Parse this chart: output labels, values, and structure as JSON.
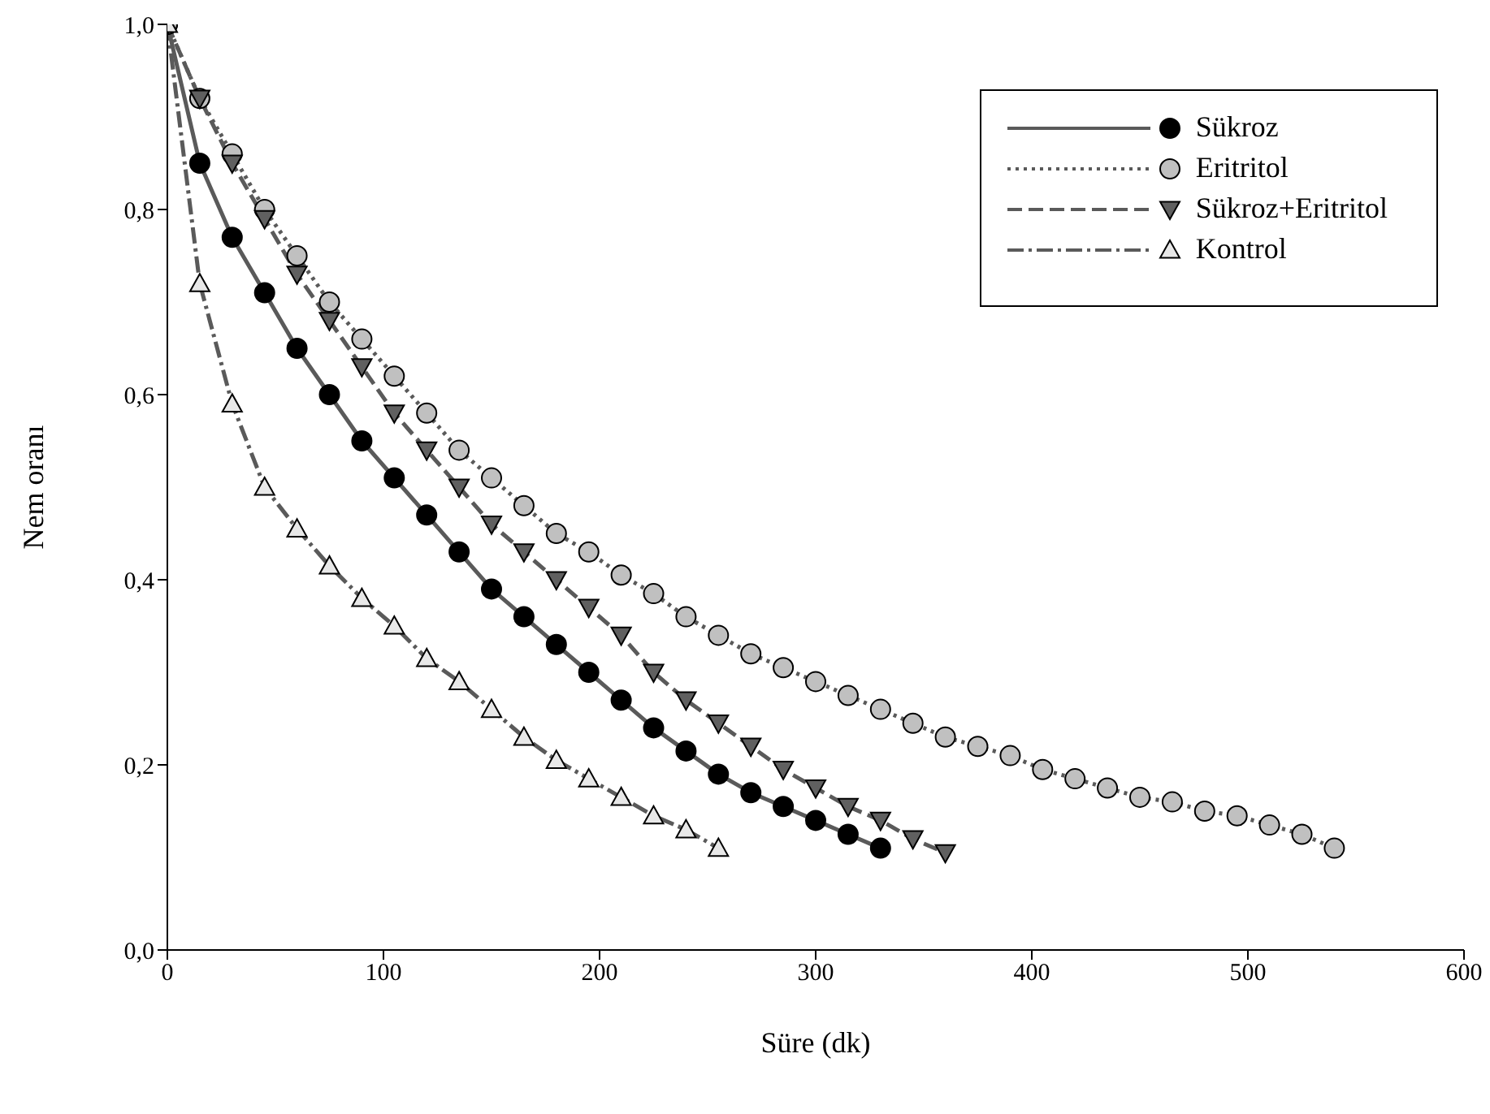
{
  "chart_data": {
    "type": "line",
    "xlabel": "Süre (dk)",
    "ylabel": "Nem oranı",
    "xlim": [
      0,
      600
    ],
    "xticks": [
      0,
      100,
      200,
      300,
      400,
      500,
      600
    ],
    "ylim": [
      0,
      1
    ],
    "yticks": [
      {
        "value": 0,
        "label": "0,0"
      },
      {
        "value": 0.2,
        "label": "0,2"
      },
      {
        "value": 0.4,
        "label": "0,4"
      },
      {
        "value": 0.6,
        "label": "0,6"
      },
      {
        "value": 0.8,
        "label": "0,8"
      },
      {
        "value": 1,
        "label": "1,0"
      }
    ],
    "grid": false,
    "legend": "top right",
    "series": [
      {
        "name": "Sükroz",
        "color": "#000000",
        "marker": "circle",
        "line_style": "solid",
        "x": [
          0,
          15,
          30,
          45,
          60,
          75,
          90,
          105,
          120,
          135,
          150,
          165,
          180,
          195,
          210,
          225,
          240,
          255,
          270,
          285,
          300,
          315,
          330
        ],
        "values": [
          1.0,
          0.85,
          0.77,
          0.71,
          0.65,
          0.6,
          0.55,
          0.51,
          0.47,
          0.43,
          0.39,
          0.36,
          0.33,
          0.3,
          0.27,
          0.24,
          0.215,
          0.19,
          0.17,
          0.155,
          0.14,
          0.125,
          0.11
        ]
      },
      {
        "name": "Eritritol",
        "color": "#c0c0c0",
        "marker": "circle",
        "line_style": "dotted",
        "x": [
          0,
          15,
          30,
          45,
          60,
          75,
          90,
          105,
          120,
          135,
          150,
          165,
          180,
          195,
          210,
          225,
          240,
          255,
          270,
          285,
          300,
          315,
          330,
          345,
          360,
          375,
          390,
          405,
          420,
          435,
          450,
          465,
          480,
          495,
          510,
          525,
          540
        ],
        "values": [
          1.0,
          0.92,
          0.86,
          0.8,
          0.75,
          0.7,
          0.66,
          0.62,
          0.58,
          0.54,
          0.51,
          0.48,
          0.45,
          0.43,
          0.405,
          0.385,
          0.36,
          0.34,
          0.32,
          0.305,
          0.29,
          0.275,
          0.26,
          0.245,
          0.23,
          0.22,
          0.21,
          0.195,
          0.185,
          0.175,
          0.165,
          0.16,
          0.15,
          0.145,
          0.135,
          0.125,
          0.11
        ]
      },
      {
        "name": "Sükroz+Eritritol",
        "color": "#606060",
        "marker": "triangle_down",
        "line_style": "dashed",
        "x": [
          0,
          15,
          30,
          45,
          60,
          75,
          90,
          105,
          120,
          135,
          150,
          165,
          180,
          195,
          210,
          225,
          240,
          255,
          270,
          285,
          300,
          315,
          330,
          345,
          360
        ],
        "values": [
          1.0,
          0.92,
          0.85,
          0.79,
          0.73,
          0.68,
          0.63,
          0.58,
          0.54,
          0.5,
          0.46,
          0.43,
          0.4,
          0.37,
          0.34,
          0.3,
          0.27,
          0.245,
          0.22,
          0.195,
          0.175,
          0.155,
          0.14,
          0.12,
          0.105
        ]
      },
      {
        "name": "Kontrol",
        "color": "#e8e8e8",
        "marker": "triangle",
        "line_style": "dashdot",
        "x": [
          0,
          15,
          30,
          45,
          60,
          75,
          90,
          105,
          120,
          135,
          150,
          165,
          180,
          195,
          210,
          225,
          240,
          255
        ],
        "values": [
          1.0,
          0.72,
          0.59,
          0.5,
          0.455,
          0.415,
          0.38,
          0.35,
          0.315,
          0.29,
          0.26,
          0.23,
          0.205,
          0.185,
          0.165,
          0.145,
          0.13,
          0.11
        ]
      }
    ]
  }
}
